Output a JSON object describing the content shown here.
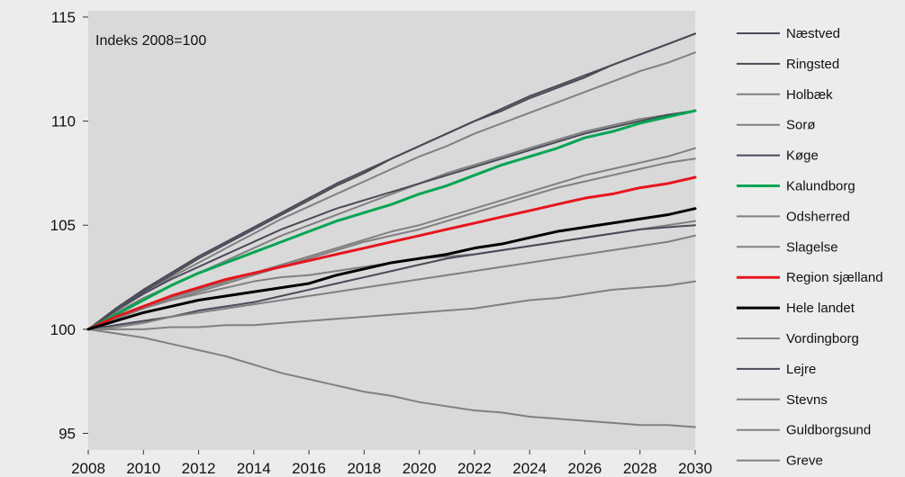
{
  "chart_data": {
    "type": "line",
    "title": "",
    "ylabel": "Indeks 2008=100",
    "xlabel": "",
    "xlim": [
      2008,
      2030
    ],
    "ylim": [
      94.2,
      115.3
    ],
    "x_ticks": [
      2008,
      2010,
      2012,
      2014,
      2016,
      2018,
      2020,
      2022,
      2024,
      2026,
      2028,
      2030
    ],
    "y_ticks": [
      95,
      100,
      105,
      110,
      115
    ],
    "grid": false,
    "legend_position": "right",
    "x": [
      2008,
      2009,
      2010,
      2011,
      2012,
      2013,
      2014,
      2015,
      2016,
      2017,
      2018,
      2019,
      2020,
      2021,
      2022,
      2023,
      2024,
      2025,
      2026,
      2027,
      2028,
      2029,
      2030
    ],
    "series": [
      {
        "name": "Næstved",
        "color": "#4a4a58",
        "width": 2,
        "values": [
          100,
          101.0,
          101.9,
          102.7,
          103.5,
          104.2,
          104.9,
          105.6,
          106.3,
          107.0,
          107.6,
          108.2,
          108.8,
          109.4,
          110.0,
          110.6,
          111.2,
          111.7,
          112.2,
          112.7,
          113.2,
          113.7,
          114.2
        ]
      },
      {
        "name": "Ringsted",
        "color": "#4a4a58",
        "width": 2,
        "values": [
          100,
          100.9,
          101.8,
          102.6,
          103.4,
          104.1,
          104.8,
          105.5,
          106.2,
          106.9,
          107.5,
          108.2,
          108.8,
          109.4,
          110.0,
          110.5,
          111.1,
          111.6,
          112.1,
          112.7,
          113.2,
          113.7,
          114.2
        ]
      },
      {
        "name": "Holbæk",
        "color": "#808080",
        "width": 2,
        "values": [
          100,
          100.9,
          101.7,
          102.5,
          103.2,
          103.9,
          104.6,
          105.3,
          105.9,
          106.5,
          107.1,
          107.7,
          108.3,
          108.8,
          109.4,
          109.9,
          110.4,
          110.9,
          111.4,
          111.9,
          112.4,
          112.8,
          113.3
        ]
      },
      {
        "name": "Sorø",
        "color": "#808080",
        "width": 2,
        "values": [
          100,
          100.8,
          101.5,
          102.1,
          102.7,
          103.3,
          103.9,
          104.5,
          105.0,
          105.5,
          106.0,
          106.5,
          107.0,
          107.5,
          107.9,
          108.3,
          108.7,
          109.1,
          109.5,
          109.8,
          110.1,
          110.3,
          110.5
        ]
      },
      {
        "name": "Køge",
        "color": "#4a4a58",
        "width": 2,
        "values": [
          100,
          100.9,
          101.7,
          102.4,
          103.0,
          103.6,
          104.2,
          104.8,
          105.3,
          105.8,
          106.2,
          106.6,
          107.0,
          107.4,
          107.8,
          108.2,
          108.6,
          109.0,
          109.4,
          109.7,
          110.0,
          110.3,
          110.5
        ]
      },
      {
        "name": "Kalundborg",
        "color": "#00a651",
        "width": 3,
        "values": [
          100,
          100.7,
          101.4,
          102.1,
          102.7,
          103.2,
          103.7,
          104.2,
          104.7,
          105.2,
          105.6,
          106.0,
          106.5,
          106.9,
          107.4,
          107.9,
          108.3,
          108.7,
          109.2,
          109.5,
          109.9,
          110.2,
          110.5
        ]
      },
      {
        "name": "Odsherred",
        "color": "#808080",
        "width": 2,
        "values": [
          100,
          100.5,
          101.0,
          101.5,
          101.9,
          102.3,
          102.7,
          103.1,
          103.5,
          103.9,
          104.3,
          104.7,
          105.0,
          105.4,
          105.8,
          106.2,
          106.6,
          107.0,
          107.4,
          107.7,
          108.0,
          108.3,
          108.7
        ]
      },
      {
        "name": "Slagelse",
        "color": "#808080",
        "width": 2,
        "values": [
          100,
          100.5,
          101.0,
          101.4,
          101.8,
          102.2,
          102.6,
          103.0,
          103.4,
          103.8,
          104.2,
          104.5,
          104.8,
          105.2,
          105.6,
          106.0,
          106.4,
          106.8,
          107.1,
          107.4,
          107.7,
          108.0,
          108.2
        ]
      },
      {
        "name": "Region sjælland",
        "color": "#e8141c",
        "width": 3,
        "values": [
          100,
          100.6,
          101.1,
          101.6,
          102.0,
          102.4,
          102.7,
          103.0,
          103.3,
          103.6,
          103.9,
          104.2,
          104.5,
          104.8,
          105.1,
          105.4,
          105.7,
          106.0,
          106.3,
          106.5,
          106.8,
          107.0,
          107.3
        ]
      },
      {
        "name": "Hele landet",
        "color": "#000000",
        "width": 3,
        "values": [
          100,
          100.4,
          100.8,
          101.1,
          101.4,
          101.6,
          101.8,
          102.0,
          102.2,
          102.6,
          102.9,
          103.2,
          103.4,
          103.6,
          103.9,
          104.1,
          104.4,
          104.7,
          104.9,
          105.1,
          105.3,
          105.5,
          105.8
        ]
      },
      {
        "name": "Vordingborg",
        "color": "#808080",
        "width": 2,
        "values": [
          100,
          100.5,
          101.0,
          101.4,
          101.7,
          102.0,
          102.3,
          102.5,
          102.6,
          102.8,
          103.0,
          103.2,
          103.4,
          103.5,
          103.6,
          103.8,
          104.0,
          104.2,
          104.4,
          104.6,
          104.8,
          105.0,
          105.2
        ]
      },
      {
        "name": "Lejre",
        "color": "#4a4a58",
        "width": 2,
        "values": [
          100,
          100.2,
          100.4,
          100.6,
          100.9,
          101.1,
          101.3,
          101.6,
          101.9,
          102.2,
          102.5,
          102.8,
          103.1,
          103.4,
          103.6,
          103.8,
          104.0,
          104.2,
          104.4,
          104.6,
          104.8,
          104.9,
          105.0
        ]
      },
      {
        "name": "Stevns",
        "color": "#808080",
        "width": 2,
        "values": [
          100,
          100.1,
          100.3,
          100.6,
          100.8,
          101.0,
          101.2,
          101.4,
          101.6,
          101.8,
          102.0,
          102.2,
          102.4,
          102.6,
          102.8,
          103.0,
          103.2,
          103.4,
          103.6,
          103.8,
          104.0,
          104.2,
          104.5
        ]
      },
      {
        "name": "Guldborgsund",
        "color": "#808080",
        "width": 2,
        "values": [
          100,
          99.8,
          99.6,
          99.3,
          99.0,
          98.7,
          98.3,
          97.9,
          97.6,
          97.3,
          97.0,
          96.8,
          96.5,
          96.3,
          96.1,
          96.0,
          95.8,
          95.7,
          95.6,
          95.5,
          95.4,
          95.4,
          95.3
        ]
      },
      {
        "name": "Greve",
        "color": "#808080",
        "width": 2,
        "values": [
          100,
          100.0,
          100.0,
          100.1,
          100.1,
          100.2,
          100.2,
          100.3,
          100.4,
          100.5,
          100.6,
          100.7,
          100.8,
          100.9,
          101.0,
          101.2,
          101.4,
          101.5,
          101.7,
          101.9,
          102.0,
          102.1,
          102.3
        ]
      }
    ]
  }
}
